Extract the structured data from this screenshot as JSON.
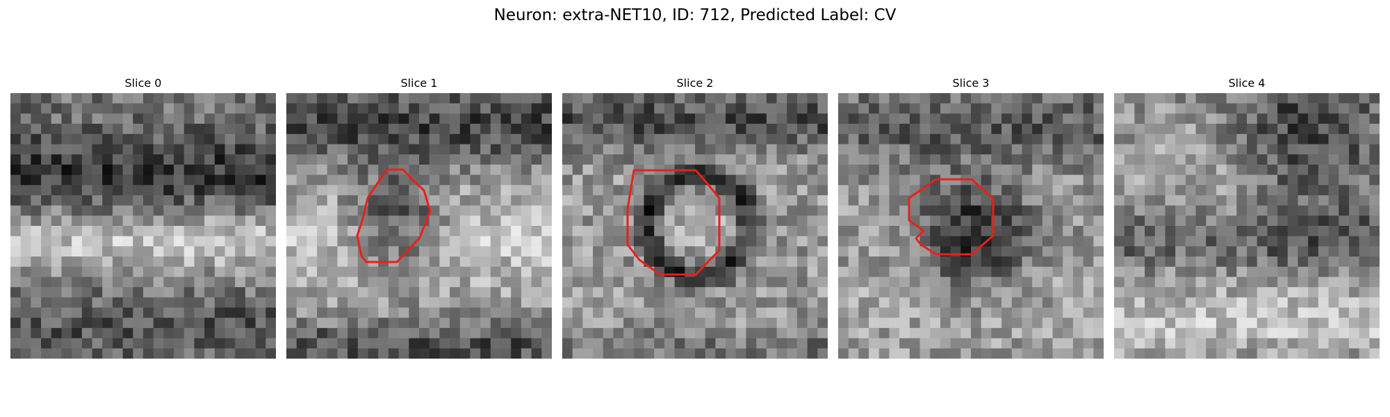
{
  "figure": {
    "title": "Neuron: extra-NET10, ID: 712, Predicted Label: CV"
  },
  "outline_color": "#e8211a",
  "colormap": "grayscale",
  "slices": [
    {
      "label": "Slice 0",
      "has_outline": false,
      "outline_name": ""
    },
    {
      "label": "Slice 1",
      "has_outline": true,
      "outline_name": "octagon-outline"
    },
    {
      "label": "Slice 2",
      "has_outline": true,
      "outline_name": "octagon-outline"
    },
    {
      "label": "Slice 3",
      "has_outline": true,
      "outline_name": "octagon-outline"
    },
    {
      "label": "Slice 4",
      "has_outline": false,
      "outline_name": ""
    }
  ]
}
